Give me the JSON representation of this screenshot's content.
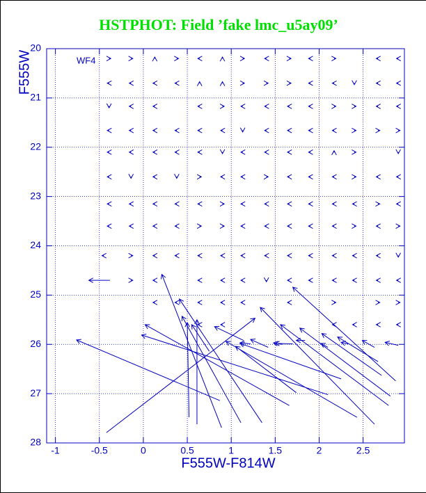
{
  "chart_data": {
    "type": "quiver",
    "title": "HSTPHOT: Field ’fake lmc_u5ay09’",
    "x_label": "F555W-F814W",
    "y_label": "F555W",
    "annotation": "WF4",
    "xlim": [
      -1.1,
      2.97
    ],
    "ylim": [
      28,
      20
    ],
    "xticks": [
      -1,
      -0.5,
      0,
      0.5,
      1,
      1.5,
      2,
      2.5
    ],
    "yticks": [
      20,
      21,
      22,
      23,
      24,
      25,
      26,
      27,
      28
    ],
    "grid": true,
    "color": "#0000c0",
    "arrows": [
      [
        -0.39,
        20.2,
        -0.37,
        20.2
      ],
      [
        -0.14,
        20.2,
        -0.12,
        20.2
      ],
      [
        0.13,
        20.2,
        0.13,
        20.17
      ],
      [
        0.38,
        20.2,
        0.4,
        20.2
      ],
      [
        0.64,
        20.2,
        0.62,
        20.2
      ],
      [
        0.9,
        20.2,
        0.9,
        20.17
      ],
      [
        1.13,
        20.2,
        1.15,
        20.2
      ],
      [
        1.4,
        20.2,
        1.38,
        20.2
      ],
      [
        1.66,
        20.2,
        1.68,
        20.2
      ],
      [
        1.9,
        20.2,
        1.88,
        20.2
      ],
      [
        2.17,
        20.2,
        2.19,
        20.2
      ],
      [
        2.67,
        20.2,
        2.65,
        20.2
      ],
      [
        2.9,
        20.2,
        2.88,
        20.2
      ],
      [
        -0.39,
        20.7,
        -0.41,
        20.7
      ],
      [
        -0.14,
        20.7,
        -0.16,
        20.7
      ],
      [
        0.13,
        20.7,
        0.11,
        20.7
      ],
      [
        0.38,
        20.7,
        0.36,
        20.7
      ],
      [
        0.64,
        20.7,
        0.64,
        20.67
      ],
      [
        0.9,
        20.7,
        0.9,
        20.67
      ],
      [
        1.13,
        20.7,
        1.15,
        20.7
      ],
      [
        1.4,
        20.7,
        1.42,
        20.7
      ],
      [
        1.66,
        20.7,
        1.68,
        20.7
      ],
      [
        1.9,
        20.7,
        1.88,
        20.7
      ],
      [
        2.17,
        20.7,
        2.15,
        20.7
      ],
      [
        2.4,
        20.7,
        2.4,
        20.73
      ],
      [
        2.67,
        20.7,
        2.65,
        20.7
      ],
      [
        2.9,
        20.7,
        2.88,
        20.7
      ],
      [
        -0.39,
        21.17,
        -0.39,
        21.2
      ],
      [
        -0.14,
        21.17,
        -0.16,
        21.17
      ],
      [
        0.13,
        21.17,
        0.11,
        21.17
      ],
      [
        0.64,
        21.17,
        0.62,
        21.17
      ],
      [
        0.9,
        21.17,
        0.92,
        21.17
      ],
      [
        1.13,
        21.17,
        1.11,
        21.17
      ],
      [
        1.4,
        21.17,
        1.38,
        21.17
      ],
      [
        1.66,
        21.17,
        1.64,
        21.17
      ],
      [
        1.9,
        21.17,
        1.88,
        21.17
      ],
      [
        2.17,
        21.17,
        2.19,
        21.17
      ],
      [
        2.4,
        21.17,
        2.42,
        21.17
      ],
      [
        2.67,
        21.17,
        2.65,
        21.17
      ],
      [
        2.9,
        21.17,
        2.88,
        21.17
      ],
      [
        -0.39,
        21.66,
        -0.41,
        21.66
      ],
      [
        -0.14,
        21.66,
        -0.16,
        21.66
      ],
      [
        0.13,
        21.66,
        0.11,
        21.66
      ],
      [
        0.38,
        21.66,
        0.36,
        21.66
      ],
      [
        0.64,
        21.66,
        0.62,
        21.66
      ],
      [
        0.9,
        21.66,
        0.88,
        21.66
      ],
      [
        1.13,
        21.66,
        1.13,
        21.69
      ],
      [
        1.4,
        21.66,
        1.38,
        21.66
      ],
      [
        1.66,
        21.66,
        1.64,
        21.66
      ],
      [
        1.9,
        21.66,
        1.88,
        21.66
      ],
      [
        2.17,
        21.66,
        2.15,
        21.66
      ],
      [
        2.4,
        21.66,
        2.42,
        21.66
      ],
      [
        2.67,
        21.66,
        2.69,
        21.66
      ],
      [
        2.9,
        21.66,
        2.92,
        21.66
      ],
      [
        -0.39,
        22.1,
        -0.41,
        22.1
      ],
      [
        -0.14,
        22.1,
        -0.16,
        22.1
      ],
      [
        0.13,
        22.1,
        0.11,
        22.1
      ],
      [
        0.38,
        22.1,
        0.36,
        22.1
      ],
      [
        0.64,
        22.1,
        0.62,
        22.1
      ],
      [
        0.9,
        22.1,
        0.9,
        22.13
      ],
      [
        1.13,
        22.1,
        1.11,
        22.1
      ],
      [
        1.4,
        22.1,
        1.38,
        22.1
      ],
      [
        1.66,
        22.1,
        1.64,
        22.1
      ],
      [
        1.9,
        22.1,
        1.88,
        22.1
      ],
      [
        2.17,
        22.1,
        2.17,
        22.07
      ],
      [
        2.4,
        22.1,
        2.42,
        22.1
      ],
      [
        2.9,
        22.1,
        2.9,
        22.13
      ],
      [
        -0.39,
        22.6,
        -0.41,
        22.6
      ],
      [
        -0.14,
        22.6,
        -0.14,
        22.63
      ],
      [
        0.13,
        22.6,
        0.11,
        22.6
      ],
      [
        0.38,
        22.6,
        0.38,
        22.63
      ],
      [
        0.64,
        22.6,
        0.66,
        22.6
      ],
      [
        0.9,
        22.6,
        0.88,
        22.6
      ],
      [
        1.13,
        22.6,
        1.11,
        22.6
      ],
      [
        1.4,
        22.6,
        1.42,
        22.6
      ],
      [
        1.66,
        22.6,
        1.64,
        22.6
      ],
      [
        1.9,
        22.6,
        1.88,
        22.6
      ],
      [
        2.17,
        22.6,
        2.15,
        22.6
      ],
      [
        2.4,
        22.6,
        2.42,
        22.6
      ],
      [
        2.67,
        22.6,
        2.65,
        22.6
      ],
      [
        2.9,
        22.6,
        2.88,
        22.6
      ],
      [
        -0.39,
        23.15,
        -0.41,
        23.15
      ],
      [
        -0.14,
        23.15,
        -0.16,
        23.15
      ],
      [
        0.13,
        23.15,
        0.11,
        23.15
      ],
      [
        0.38,
        23.15,
        0.36,
        23.15
      ],
      [
        0.64,
        23.15,
        0.62,
        23.15
      ],
      [
        0.9,
        23.15,
        0.92,
        23.15
      ],
      [
        1.13,
        23.15,
        1.11,
        23.15
      ],
      [
        1.4,
        23.15,
        1.38,
        23.15
      ],
      [
        1.66,
        23.15,
        1.64,
        23.15
      ],
      [
        1.9,
        23.15,
        1.88,
        23.15
      ],
      [
        2.17,
        23.15,
        2.15,
        23.15
      ],
      [
        2.4,
        23.15,
        2.38,
        23.15
      ],
      [
        2.67,
        23.15,
        2.69,
        23.15
      ],
      [
        2.9,
        23.15,
        2.88,
        23.15
      ],
      [
        -0.39,
        23.6,
        -0.41,
        23.6
      ],
      [
        -0.14,
        23.6,
        -0.16,
        23.6
      ],
      [
        0.13,
        23.6,
        0.11,
        23.6
      ],
      [
        0.38,
        23.6,
        0.36,
        23.6
      ],
      [
        0.64,
        23.6,
        0.66,
        23.6
      ],
      [
        0.9,
        23.6,
        0.92,
        23.6
      ],
      [
        1.13,
        23.6,
        1.11,
        23.6
      ],
      [
        1.4,
        23.6,
        1.38,
        23.6
      ],
      [
        1.66,
        23.6,
        1.64,
        23.6
      ],
      [
        1.9,
        23.6,
        1.88,
        23.6
      ],
      [
        2.17,
        23.6,
        2.15,
        23.6
      ],
      [
        2.4,
        23.6,
        2.42,
        23.6
      ],
      [
        2.67,
        23.6,
        2.65,
        23.6
      ],
      [
        2.9,
        23.6,
        2.92,
        23.6
      ],
      [
        -0.45,
        24.2,
        -0.47,
        24.2
      ],
      [
        -0.14,
        24.2,
        -0.12,
        24.2
      ],
      [
        0.13,
        24.2,
        0.11,
        24.2
      ],
      [
        0.38,
        24.2,
        0.36,
        24.2
      ],
      [
        0.64,
        24.2,
        0.62,
        24.2
      ],
      [
        0.9,
        24.2,
        0.88,
        24.2
      ],
      [
        1.13,
        24.2,
        1.11,
        24.2
      ],
      [
        1.4,
        24.2,
        1.38,
        24.2
      ],
      [
        1.66,
        24.2,
        1.64,
        24.2
      ],
      [
        1.9,
        24.2,
        1.88,
        24.2
      ],
      [
        2.17,
        24.2,
        2.15,
        24.2
      ],
      [
        2.4,
        24.2,
        2.38,
        24.2
      ],
      [
        2.67,
        24.2,
        2.65,
        24.2
      ],
      [
        2.9,
        24.2,
        2.9,
        24.23
      ],
      [
        -0.38,
        24.7,
        -0.62,
        24.7
      ],
      [
        -0.14,
        24.7,
        -0.12,
        24.7
      ],
      [
        0.13,
        24.7,
        0.11,
        24.7
      ],
      [
        0.64,
        24.7,
        0.62,
        24.7
      ],
      [
        0.9,
        24.7,
        0.88,
        24.7
      ],
      [
        1.13,
        24.7,
        1.11,
        24.7
      ],
      [
        1.4,
        24.7,
        1.4,
        24.73
      ],
      [
        1.66,
        24.7,
        1.64,
        24.7
      ],
      [
        1.9,
        24.7,
        1.88,
        24.7
      ],
      [
        2.17,
        24.7,
        2.15,
        24.7
      ],
      [
        2.4,
        24.7,
        2.38,
        24.7
      ],
      [
        2.67,
        24.7,
        2.65,
        24.7
      ],
      [
        2.9,
        24.7,
        2.88,
        24.7
      ],
      [
        0.13,
        25.15,
        0.11,
        25.15
      ],
      [
        0.38,
        25.15,
        0.36,
        25.15
      ],
      [
        0.64,
        25.15,
        0.62,
        25.15
      ],
      [
        0.9,
        25.15,
        0.88,
        25.15
      ],
      [
        1.13,
        25.15,
        1.11,
        25.15
      ],
      [
        1.66,
        25.15,
        1.64,
        25.15
      ],
      [
        2.17,
        25.15,
        2.19,
        25.15
      ],
      [
        2.67,
        25.15,
        2.69,
        25.15
      ],
      [
        2.9,
        25.15,
        2.92,
        25.15
      ],
      [
        0.64,
        25.6,
        0.62,
        25.6
      ],
      [
        0.9,
        25.6,
        0.88,
        25.6
      ],
      [
        2.17,
        25.6,
        2.15,
        25.6
      ],
      [
        2.4,
        25.6,
        2.38,
        25.6
      ],
      [
        2.67,
        25.6,
        2.65,
        25.6
      ],
      [
        2.9,
        25.6,
        2.88,
        25.6
      ],
      [
        0.87,
        27.14,
        -0.76,
        25.91
      ],
      [
        -0.42,
        27.79,
        1.27,
        25.47
      ],
      [
        2.1,
        27.02,
        -0.02,
        25.81
      ],
      [
        1.66,
        27.24,
        0.02,
        25.6
      ],
      [
        0.89,
        27.69,
        0.21,
        24.58
      ],
      [
        1.35,
        27.59,
        0.41,
        25.08
      ],
      [
        1.11,
        27.59,
        0.44,
        25.43
      ],
      [
        0.61,
        27.62,
        0.61,
        25.5
      ],
      [
        0.52,
        27.48,
        0.5,
        25.56
      ],
      [
        2.43,
        27.48,
        0.94,
        25.94
      ],
      [
        1.74,
        26.98,
        1.05,
        26.04
      ],
      [
        2.25,
        26.7,
        1.1,
        25.98
      ],
      [
        2.63,
        27.62,
        1.33,
        25.25
      ],
      [
        2.79,
        27.24,
        1.56,
        25.6
      ],
      [
        2.87,
        26.74,
        1.7,
        24.84
      ],
      [
        2.81,
        27.05,
        1.78,
        25.67
      ],
      [
        2.71,
        26.63,
        2.03,
        25.78
      ],
      [
        2.67,
        26.35,
        2.21,
        25.85
      ],
      [
        0.75,
        26.14,
        0.55,
        25.6
      ],
      [
        1.14,
        25.92,
        0.81,
        25.64
      ],
      [
        1.42,
        26.06,
        1.22,
        25.9
      ],
      [
        1.7,
        25.99,
        1.5,
        25.98
      ],
      [
        1.84,
        25.92,
        1.74,
        25.92
      ],
      [
        2.1,
        26.06,
        2.02,
        25.98
      ],
      [
        2.33,
        25.99,
        2.25,
        25.96
      ],
      [
        2.63,
        26.06,
        2.49,
        25.92
      ],
      [
        2.9,
        26.02,
        2.75,
        25.96
      ],
      [
        1.22,
        25.99,
        1.1,
        25.97
      ],
      [
        1.58,
        26.0,
        1.48,
        25.97
      ]
    ]
  }
}
